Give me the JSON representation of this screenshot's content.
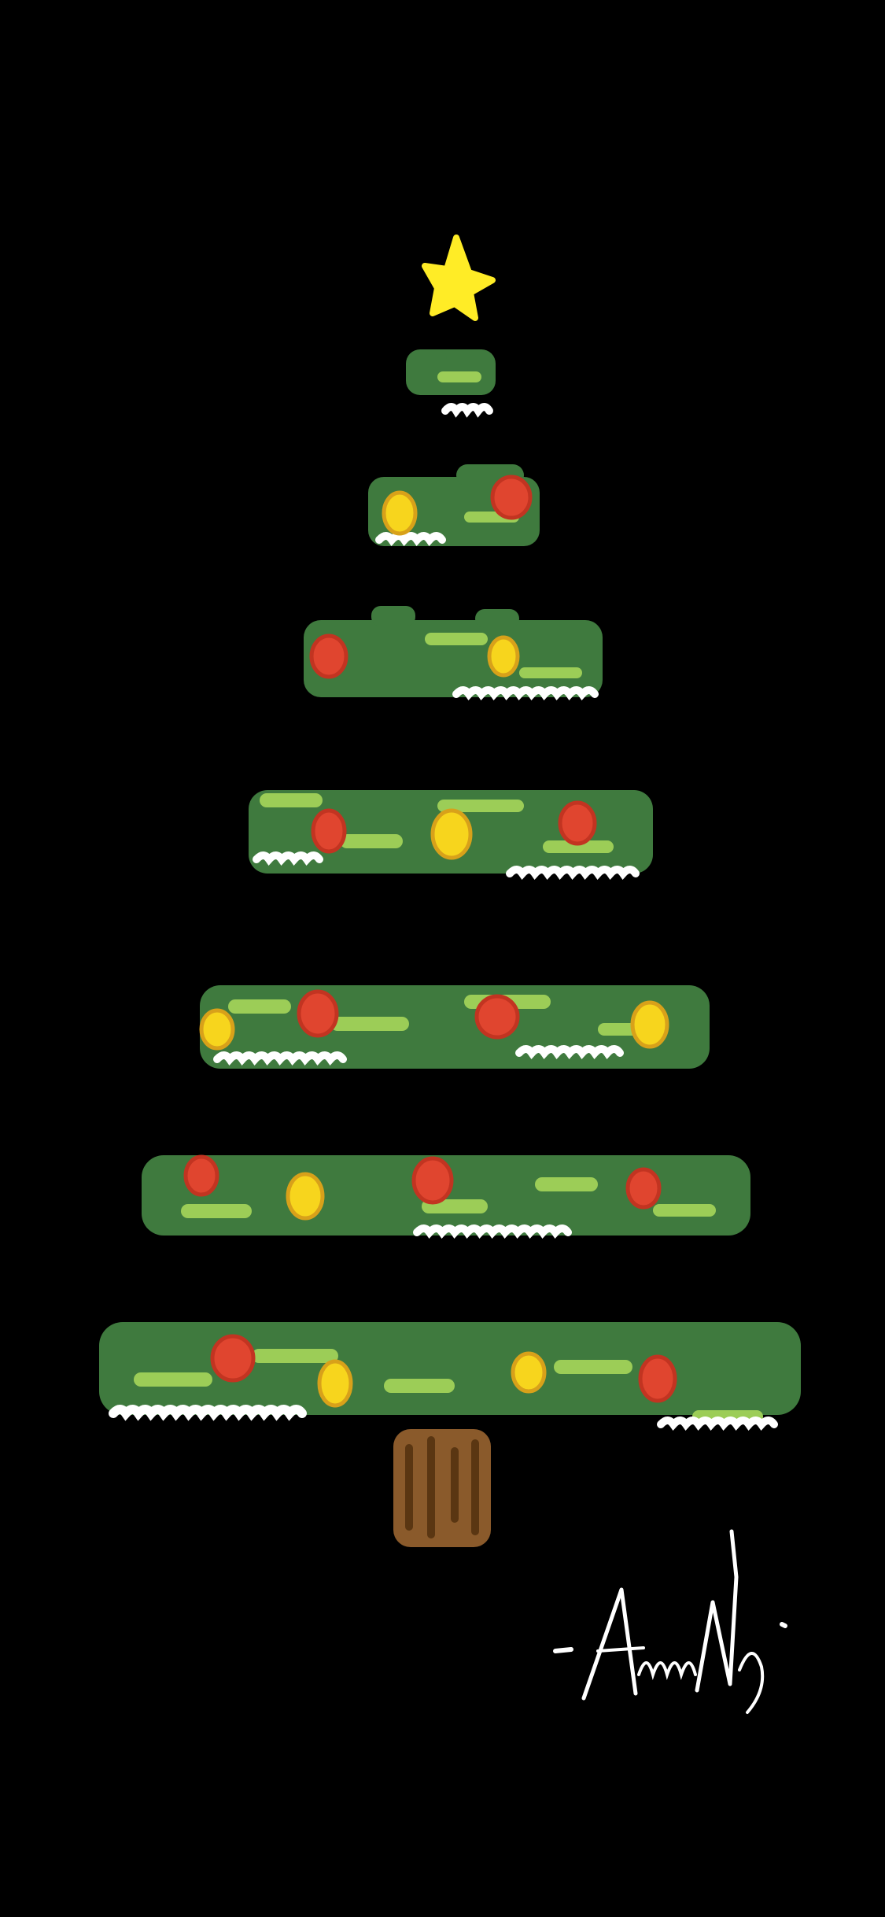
{
  "scene": {
    "background": "#000000",
    "subject": "christmas-tree",
    "tier_count": 7,
    "ornaments": {
      "red": "#e0452f",
      "yellow": "#f7d51d"
    },
    "colors": {
      "foliage_dark": "#3f7a3e",
      "foliage_light": "#9ccd57",
      "snow": "#ffffff",
      "star": "#ffec26",
      "trunk": "#8a5a2b",
      "trunk_dark": "#5a3612"
    }
  },
  "signature": {
    "text": "- Andrew Ng",
    "color": "#ffffff"
  }
}
